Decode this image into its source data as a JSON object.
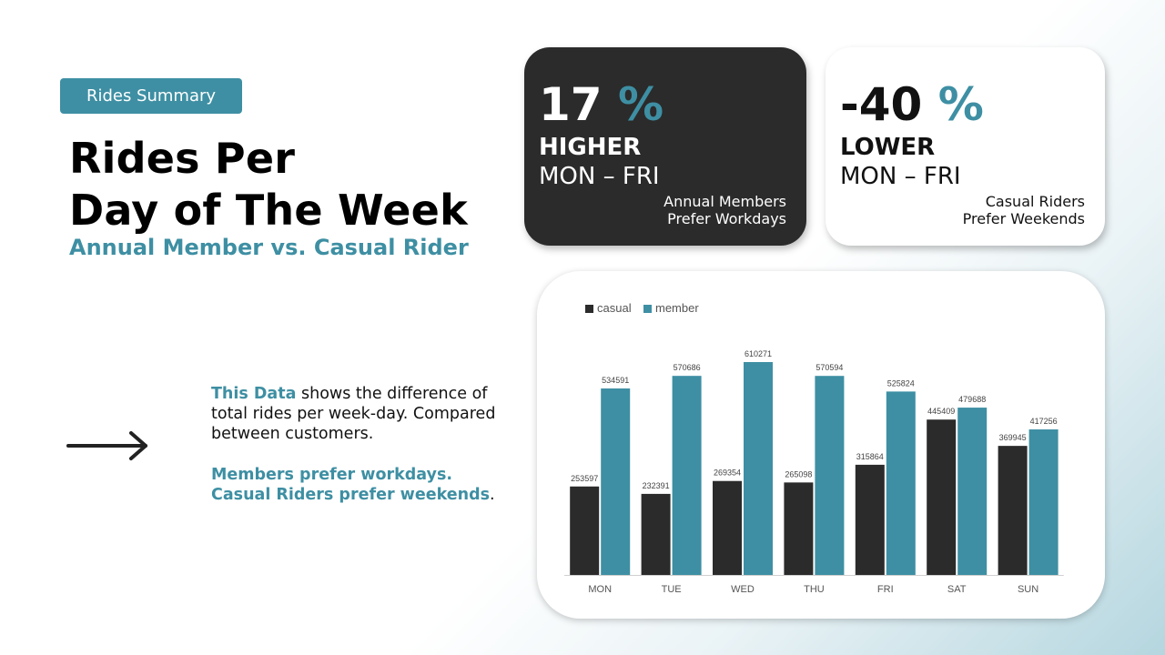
{
  "summary_badge": "Rides Summary",
  "title": {
    "line1": "Rides Per",
    "line2": "Day of The Week",
    "subtitle": "Annual Member vs. Casual Rider"
  },
  "description": {
    "p1_highlight": "This Data",
    "p1_rest": " shows the difference of total rides per week-day. Compared between customers.",
    "p2_line1": "Members prefer workdays.",
    "p2_line2": "Casual Riders prefer weekends",
    "p2_end": "."
  },
  "cards": {
    "member": {
      "value": "17",
      "unit": "%",
      "direction": "HIGHER",
      "days": "MON – FRI",
      "note_line1": "Annual Members",
      "note_line2": "Prefer Workdays"
    },
    "casual": {
      "value": "-40",
      "unit": "%",
      "direction": "LOWER",
      "days": "MON – FRI",
      "note_line1": "Casual Riders",
      "note_line2": "Prefer Weekends"
    }
  },
  "colors": {
    "accent": "#3e8fa3",
    "dark": "#2b2b2b"
  },
  "chart_data": {
    "type": "bar",
    "categories": [
      "MON",
      "TUE",
      "WED",
      "THU",
      "FRI",
      "SAT",
      "SUN"
    ],
    "series": [
      {
        "name": "casual",
        "color": "#2b2b2b",
        "values": [
          253597,
          232391,
          269354,
          265098,
          315864,
          445409,
          369945
        ]
      },
      {
        "name": "member",
        "color": "#3e8fa3",
        "values": [
          534591,
          570686,
          610271,
          570594,
          525824,
          479688,
          417256
        ]
      }
    ],
    "ylim": [
      0,
      610271
    ],
    "legend_position": "top-left",
    "grid": false,
    "title": "",
    "xlabel": "",
    "ylabel": ""
  }
}
